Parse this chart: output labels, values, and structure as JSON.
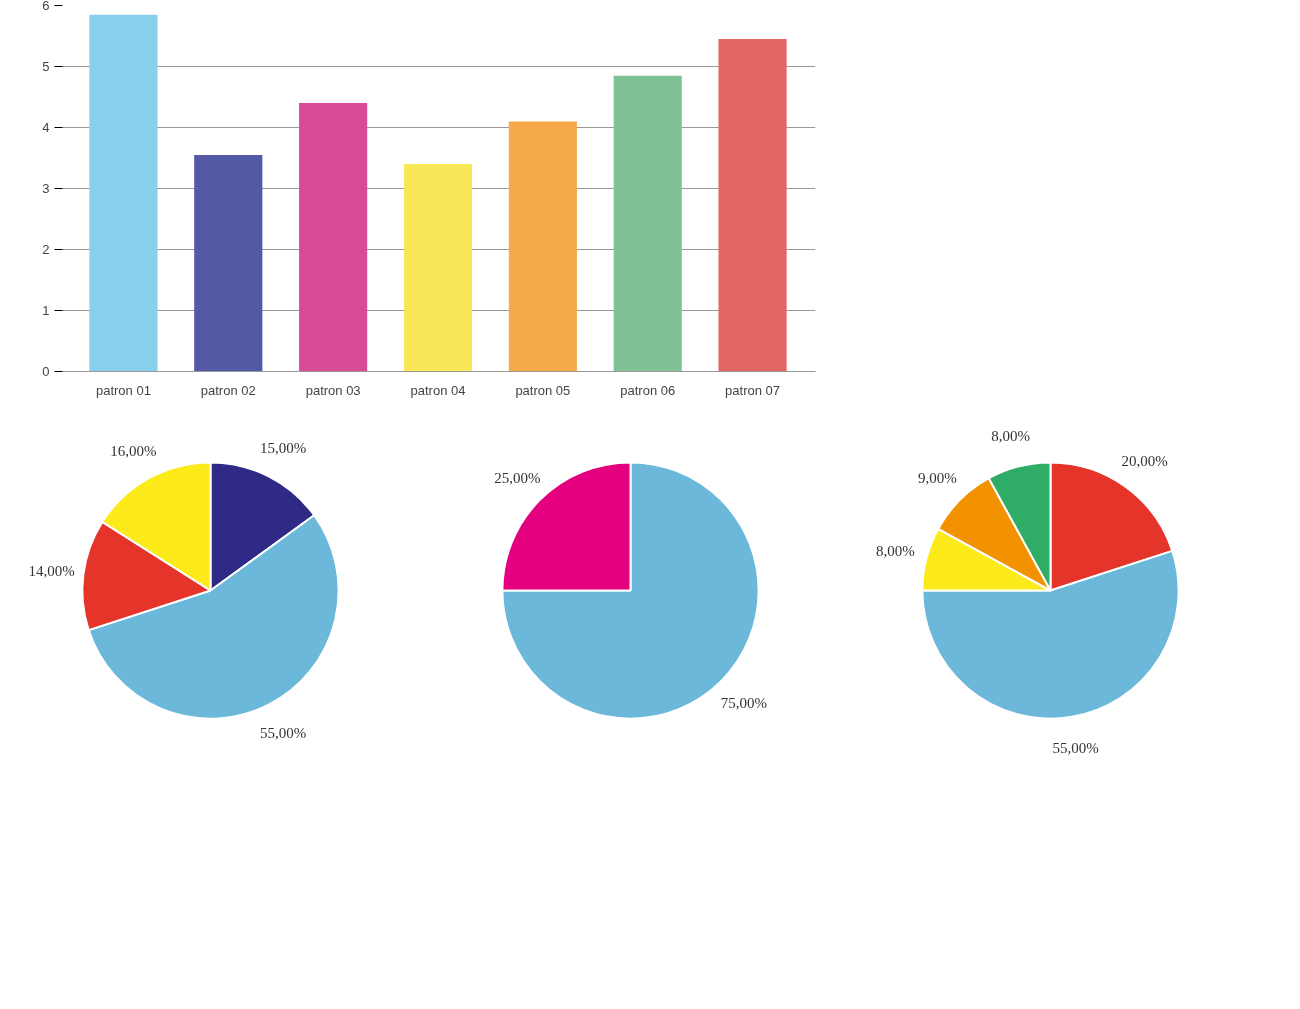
{
  "chart_data": [
    {
      "type": "bar",
      "categories": [
        "patron 01",
        "patron 02",
        "patron 03",
        "patron 04",
        "patron 05",
        "patron 06",
        "patron 07"
      ],
      "values": [
        5.85,
        3.55,
        4.4,
        3.4,
        4.1,
        4.85,
        5.45
      ],
      "colors": [
        "#87cfea",
        "#5359a5",
        "#d84c97",
        "#f8e858",
        "#f5a94a",
        "#7fc395",
        "#e26664"
      ],
      "ylim": [
        0,
        6
      ],
      "yticks": [
        0,
        1,
        2,
        3,
        4,
        5,
        6
      ],
      "grid": "y"
    },
    {
      "type": "pie",
      "categories": [
        null,
        null,
        null,
        null
      ],
      "values": [
        15,
        55,
        14,
        16
      ],
      "colors": [
        "#2e2a85",
        "#6bb8da",
        "#e5352b",
        "#fcea1a"
      ],
      "value_labels": [
        "15,00%",
        "55,00%",
        "14,00%",
        "16,00%"
      ]
    },
    {
      "type": "pie",
      "categories": [
        null,
        null
      ],
      "values": [
        75,
        25
      ],
      "colors": [
        "#6bb8da",
        "#e4007f"
      ],
      "value_labels": [
        "75,00%",
        "25,00%"
      ]
    },
    {
      "type": "pie",
      "categories": [
        null,
        null,
        null,
        null,
        null
      ],
      "values": [
        20,
        55,
        8,
        9,
        8
      ],
      "colors": [
        "#e5352b",
        "#6bb8da",
        "#fcea1a",
        "#f39200",
        "#2fac66"
      ],
      "value_labels": [
        "20,00%",
        "55,00%",
        "8,00%",
        "9,00%",
        "8,00%"
      ]
    }
  ]
}
